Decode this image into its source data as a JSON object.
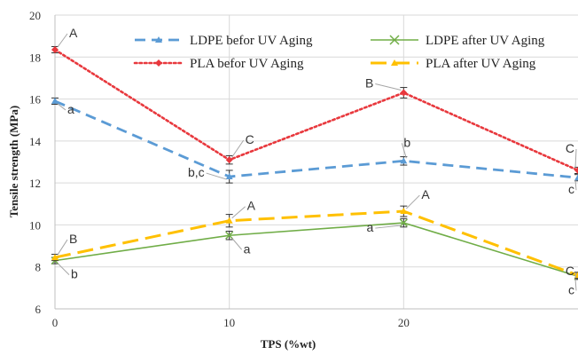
{
  "chart_data": {
    "type": "line",
    "title": "",
    "xlabel": "TPS (%wt)",
    "ylabel": "Tensile strength (MPa)",
    "x": [
      0,
      10,
      20,
      30
    ],
    "x_ticks": [
      "0",
      "10",
      "20"
    ],
    "xlim": [
      0,
      30
    ],
    "ylim": [
      6,
      20
    ],
    "y_ticks": [
      "6",
      "8",
      "10",
      "12",
      "14",
      "16",
      "18",
      "20"
    ],
    "grid": true,
    "legend_position": "top",
    "series": [
      {
        "name": "LDPE befor UV Aging",
        "values": [
          15.9,
          12.3,
          13.05,
          12.25
        ],
        "errors": [
          0.15,
          0.3,
          0.2,
          0.15
        ],
        "color": "#5b9bd5",
        "dash": "dashed",
        "marker": "triangle",
        "letters": [
          "a",
          "b,c",
          "b",
          "c"
        ]
      },
      {
        "name": "PLA befor UV Aging",
        "values": [
          18.35,
          13.1,
          16.3,
          12.6
        ],
        "errors": [
          0.15,
          0.2,
          0.25,
          0.15
        ],
        "color": "#e8383d",
        "dash": "dotted",
        "marker": "diamond",
        "letters": [
          "A",
          "C",
          "B",
          "C"
        ]
      },
      {
        "name": "LDPE after UV Aging",
        "values": [
          8.3,
          9.5,
          10.1,
          7.55
        ],
        "errors": [
          0.15,
          0.2,
          0.2,
          0.15
        ],
        "color": "#70ad47",
        "dash": "solid",
        "marker": "x",
        "letters": [
          "b",
          "a",
          "a",
          "c"
        ]
      },
      {
        "name": "PLA after UV Aging",
        "values": [
          8.45,
          10.2,
          10.65,
          7.6
        ],
        "errors": [
          0.15,
          0.3,
          0.25,
          0.15
        ],
        "color": "#ffc000",
        "dash": "longdash",
        "marker": "triangle",
        "letters": [
          "B",
          "A",
          "A",
          "C"
        ]
      }
    ]
  }
}
